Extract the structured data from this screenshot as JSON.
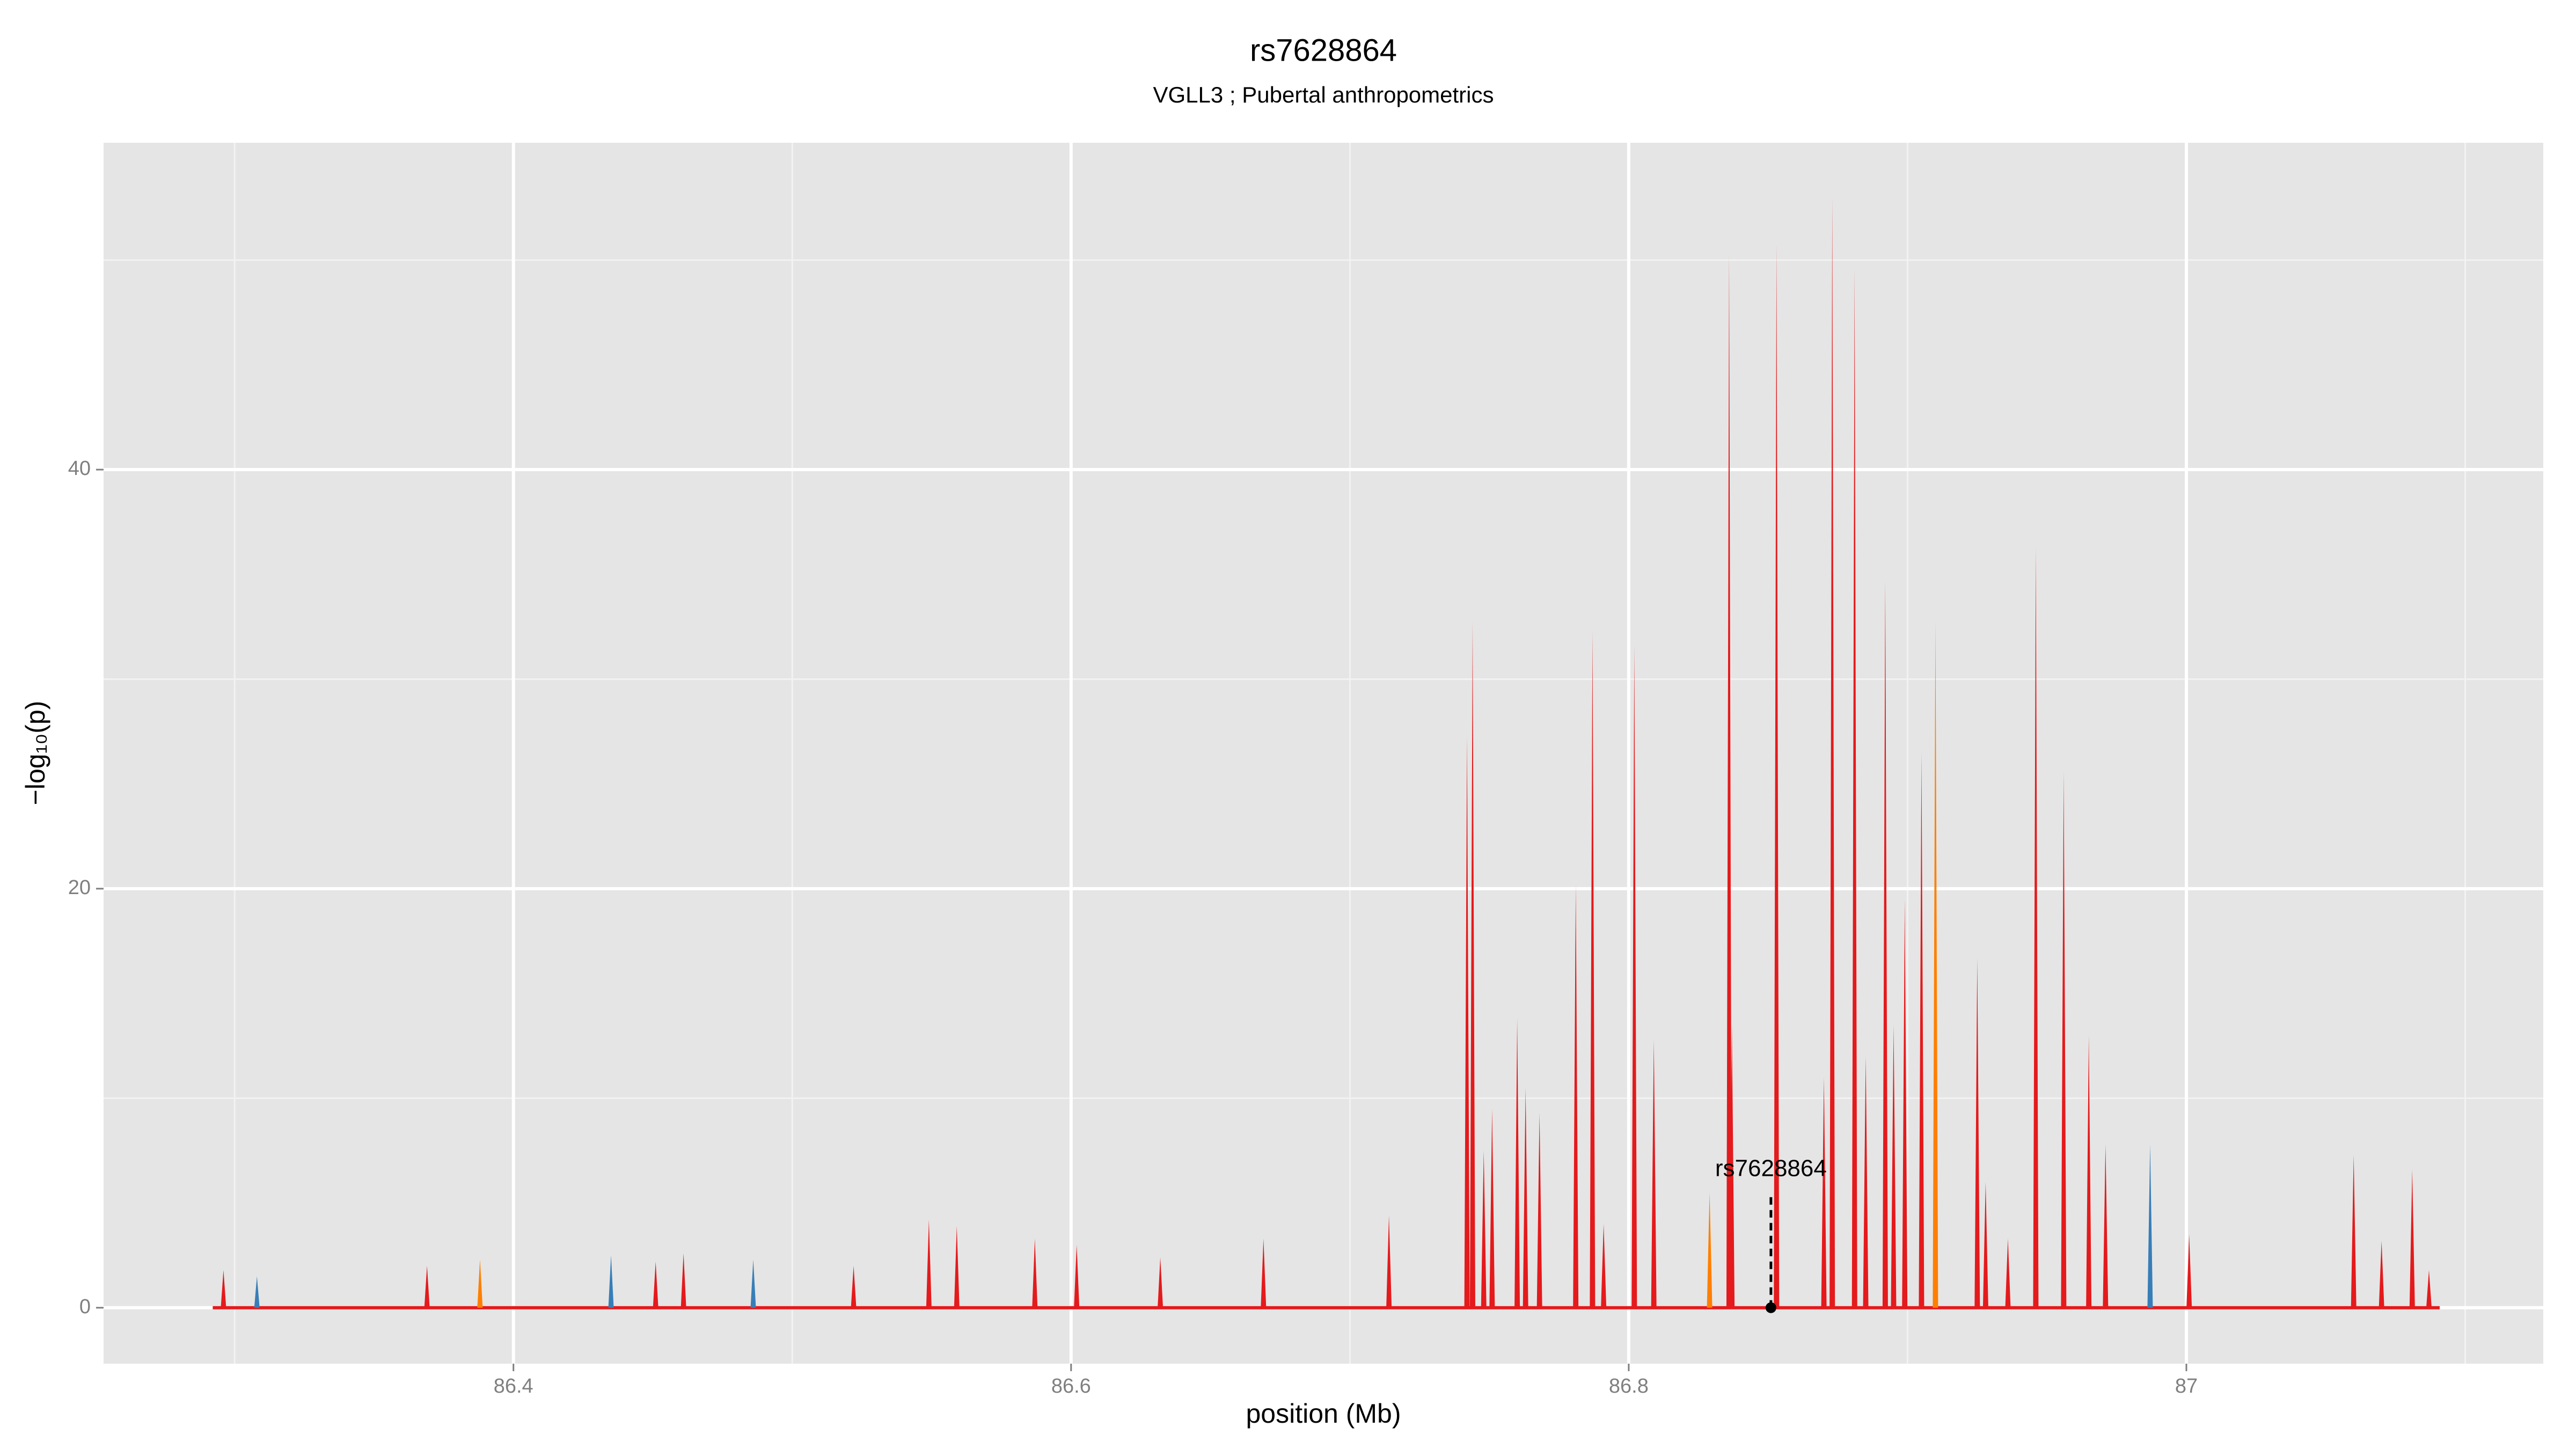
{
  "chart_data": {
    "type": "spike",
    "title": "rs7628864",
    "subtitle": "VGLL3 ; Pubertal anthropometrics",
    "x_label": "position (Mb)",
    "y_label": "−log₁₀(p)",
    "x": [
      86.296,
      86.308,
      86.369,
      86.388,
      86.435,
      86.451,
      86.461,
      86.486,
      86.522,
      86.549,
      86.559,
      86.587,
      86.602,
      86.632,
      86.669,
      86.714,
      86.742,
      86.744,
      86.748,
      86.751,
      86.76,
      86.763,
      86.768,
      86.781,
      86.787,
      86.791,
      86.802,
      86.809,
      86.829,
      86.836,
      86.837,
      86.853,
      86.87,
      86.873,
      86.881,
      86.885,
      86.892,
      86.895,
      86.899,
      86.905,
      86.91,
      86.925,
      86.928,
      86.936,
      86.946,
      86.956,
      86.965,
      86.971,
      86.987,
      87.001,
      87.06,
      87.07,
      87.081,
      87.087
    ],
    "values": [
      1.8,
      1.5,
      2.0,
      2.3,
      2.5,
      2.2,
      2.6,
      2.3,
      2.0,
      4.2,
      3.9,
      3.3,
      3.0,
      2.4,
      3.3,
      4.4,
      27.3,
      32.7,
      7.5,
      9.5,
      13.8,
      10.5,
      9.3,
      20.2,
      32.3,
      4.0,
      31.6,
      12.8,
      5.5,
      50.3,
      13.5,
      50.8,
      11.0,
      53.0,
      49.6,
      12.0,
      34.7,
      13.5,
      19.5,
      26.5,
      32.8,
      16.7,
      6.0,
      3.3,
      36.3,
      25.6,
      13.0,
      7.8,
      7.8,
      3.5,
      7.3,
      3.2,
      6.6,
      1.8
    ],
    "colors": [
      "#e41a1c",
      "#377eb8",
      "#e41a1c",
      "#ff7f00",
      "#377eb8",
      "#e41a1c",
      "#e41a1c",
      "#377eb8",
      "#e41a1c",
      "#e41a1c",
      "#e41a1c",
      "#e41a1c",
      "#e41a1c",
      "#e41a1c",
      "#e41a1c",
      "#e41a1c",
      "#e41a1c",
      "#e41a1c",
      "#e41a1c",
      "#e41a1c",
      "#e41a1c",
      "#e41a1c",
      "#e41a1c",
      "#e41a1c",
      "#e41a1c",
      "#e41a1c",
      "#e41a1c",
      "#e41a1c",
      "#ff7f00",
      "#e41a1c",
      "#e41a1c",
      "#e41a1c",
      "#e41a1c",
      "#e41a1c",
      "#e41a1c",
      "#e41a1c",
      "#e41a1c",
      "#e41a1c",
      "#e41a1c",
      "#e41a1c",
      "#ff7f00",
      "#e41a1c",
      "#e41a1c",
      "#e41a1c",
      "#e41a1c",
      "#e41a1c",
      "#e41a1c",
      "#e41a1c",
      "#377eb8",
      "#e41a1c",
      "#e41a1c",
      "#e41a1c",
      "#e41a1c",
      "#e41a1c"
    ],
    "baseline_color": "#e41a1c",
    "xlim": [
      86.253,
      87.128
    ],
    "ylim": [
      -2.67,
      55.6
    ],
    "xticks": [
      86.4,
      86.6,
      86.8,
      87.0
    ],
    "yticks": [
      0,
      20,
      40
    ],
    "x_minor_grid": [
      86.3,
      86.5,
      86.7,
      86.9,
      87.1
    ],
    "y_minor_grid": [
      10,
      30,
      50
    ],
    "grid": true,
    "annotation": {
      "label": "rs7628864",
      "x": 86.851,
      "y": 0,
      "line_top": 5.3
    }
  }
}
